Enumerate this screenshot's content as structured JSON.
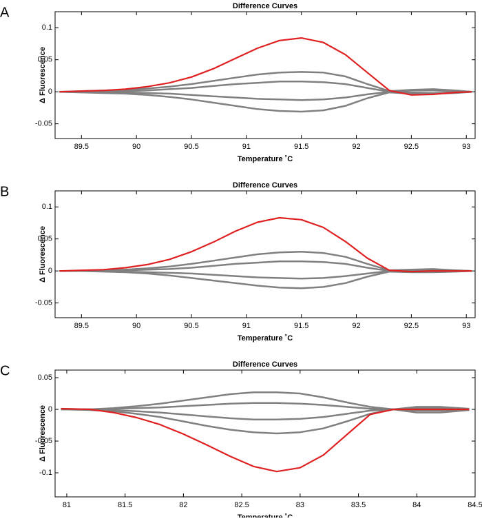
{
  "chart_data": [
    {
      "type": "line",
      "panel_label": "A",
      "title": "Difference Curves",
      "x_label": "Temperature ˚C",
      "y_label": "Δ Fluorescence",
      "x": [
        89.3,
        89.5,
        89.7,
        89.9,
        90.1,
        90.3,
        90.5,
        90.7,
        90.9,
        91.1,
        91.3,
        91.5,
        91.7,
        91.9,
        92.1,
        92.3,
        92.5,
        92.7,
        92.9,
        93.05
      ],
      "series": [
        {
          "color": "#808080",
          "values": [
            0,
            0.001,
            0.002,
            0.003,
            0.005,
            0.008,
            0.012,
            0.017,
            0.022,
            0.027,
            0.03,
            0.031,
            0.03,
            0.024,
            0.012,
            0.001,
            0.003,
            0.004,
            0.002,
            0
          ]
        },
        {
          "color": "#808080",
          "values": [
            0,
            0,
            0.001,
            0.001,
            0.002,
            0.004,
            0.006,
            0.009,
            0.012,
            0.014,
            0.016,
            0.016,
            0.015,
            0.012,
            0.006,
            0,
            0.002,
            0.002,
            0.001,
            0
          ]
        },
        {
          "color": "#808080",
          "values": [
            0,
            0,
            -0.001,
            -0.001,
            -0.002,
            -0.003,
            -0.005,
            -0.007,
            -0.009,
            -0.011,
            -0.012,
            -0.013,
            -0.012,
            -0.009,
            -0.004,
            0,
            -0.001,
            -0.002,
            -0.001,
            0
          ]
        },
        {
          "color": "#808080",
          "values": [
            0,
            -0.001,
            -0.002,
            -0.003,
            -0.005,
            -0.008,
            -0.012,
            -0.017,
            -0.022,
            -0.027,
            -0.03,
            -0.031,
            -0.029,
            -0.022,
            -0.01,
            -0.001,
            -0.003,
            -0.003,
            -0.002,
            0
          ]
        },
        {
          "color": "#e02020",
          "values": [
            0,
            0.001,
            0.002,
            0.004,
            0.008,
            0.014,
            0.023,
            0.036,
            0.052,
            0.068,
            0.08,
            0.084,
            0.077,
            0.058,
            0.03,
            0.002,
            -0.005,
            -0.004,
            -0.001,
            0
          ]
        }
      ],
      "xlim": [
        89.26,
        93.08
      ],
      "ylim": [
        -0.073,
        0.125
      ],
      "xticks": [
        89.5,
        90,
        90.5,
        91,
        91.5,
        92,
        92.5,
        93
      ],
      "yticks": [
        -0.05,
        0,
        0.05,
        0.1
      ]
    },
    {
      "type": "line",
      "panel_label": "B",
      "title": "Difference Curves",
      "x_label": "Temperature ˚C",
      "y_label": "Δ Fluorescence",
      "x": [
        89.3,
        89.5,
        89.7,
        89.9,
        90.1,
        90.3,
        90.5,
        90.7,
        90.9,
        91.1,
        91.3,
        91.5,
        91.7,
        91.9,
        92.1,
        92.3,
        92.5,
        92.7,
        92.9,
        93.05
      ],
      "series": [
        {
          "color": "#808080",
          "values": [
            0,
            0,
            0.001,
            0.002,
            0.004,
            0.007,
            0.011,
            0.016,
            0.021,
            0.026,
            0.029,
            0.03,
            0.028,
            0.022,
            0.011,
            0.001,
            0.002,
            0.003,
            0.001,
            0
          ]
        },
        {
          "color": "#808080",
          "values": [
            0,
            0,
            0.001,
            0.001,
            0.002,
            0.003,
            0.005,
            0.008,
            0.011,
            0.013,
            0.015,
            0.015,
            0.014,
            0.011,
            0.005,
            0,
            0.001,
            0.002,
            0.001,
            0
          ]
        },
        {
          "color": "#808080",
          "values": [
            0,
            0,
            0,
            -0.001,
            -0.002,
            -0.003,
            -0.004,
            -0.006,
            -0.008,
            -0.01,
            -0.011,
            -0.012,
            -0.011,
            -0.008,
            -0.004,
            0,
            -0.001,
            -0.001,
            0,
            0
          ]
        },
        {
          "color": "#808080",
          "values": [
            0,
            0,
            -0.001,
            -0.002,
            -0.004,
            -0.007,
            -0.011,
            -0.015,
            -0.019,
            -0.023,
            -0.026,
            -0.027,
            -0.025,
            -0.019,
            -0.009,
            -0.001,
            -0.002,
            -0.002,
            -0.001,
            0
          ]
        },
        {
          "color": "#e02020",
          "values": [
            0,
            0.001,
            0.002,
            0.005,
            0.01,
            0.018,
            0.03,
            0.045,
            0.062,
            0.076,
            0.083,
            0.08,
            0.068,
            0.046,
            0.02,
            0.001,
            -0.001,
            0,
            0,
            0
          ]
        }
      ],
      "xlim": [
        89.26,
        93.08
      ],
      "ylim": [
        -0.073,
        0.125
      ],
      "xticks": [
        89.5,
        90,
        90.5,
        91,
        91.5,
        92,
        92.5,
        93
      ],
      "yticks": [
        -0.05,
        0,
        0.05,
        0.1
      ]
    },
    {
      "type": "line",
      "panel_label": "C",
      "title": "Difference Curves",
      "x_label": "Temperature ˚C",
      "y_label": "Δ Fluorescence",
      "x": [
        80.95,
        81.2,
        81.4,
        81.6,
        81.8,
        82.0,
        82.2,
        82.4,
        82.6,
        82.8,
        83.0,
        83.2,
        83.4,
        83.6,
        83.8,
        84.0,
        84.2,
        84.45
      ],
      "series": [
        {
          "color": "#808080",
          "values": [
            0.001,
            0,
            0.002,
            0.005,
            0.009,
            0.014,
            0.019,
            0.024,
            0.027,
            0.027,
            0.025,
            0.019,
            0.011,
            0.004,
            0,
            0.004,
            0.004,
            0.001
          ]
        },
        {
          "color": "#808080",
          "values": [
            0,
            0,
            0.001,
            0.002,
            0.003,
            0.005,
            0.007,
            0.009,
            0.01,
            0.01,
            0.009,
            0.007,
            0.004,
            0.001,
            0,
            0.002,
            0.002,
            0
          ]
        },
        {
          "color": "#808080",
          "values": [
            0,
            0,
            -0.001,
            -0.003,
            -0.005,
            -0.008,
            -0.011,
            -0.014,
            -0.016,
            -0.016,
            -0.015,
            -0.012,
            -0.007,
            -0.002,
            0,
            -0.002,
            -0.002,
            0
          ]
        },
        {
          "color": "#808080",
          "values": [
            0,
            -0.001,
            -0.003,
            -0.007,
            -0.012,
            -0.019,
            -0.026,
            -0.032,
            -0.036,
            -0.038,
            -0.036,
            -0.03,
            -0.019,
            -0.007,
            0,
            -0.005,
            -0.005,
            -0.001
          ]
        },
        {
          "color": "#e02020",
          "values": [
            0.001,
            0,
            -0.005,
            -0.013,
            -0.024,
            -0.039,
            -0.056,
            -0.074,
            -0.09,
            -0.098,
            -0.092,
            -0.072,
            -0.04,
            -0.008,
            0,
            0,
            0,
            0
          ]
        }
      ],
      "xlim": [
        80.9,
        84.5
      ],
      "ylim": [
        -0.138,
        0.062
      ],
      "xticks": [
        81,
        81.5,
        82,
        82.5,
        83,
        83.5,
        84,
        84.5
      ],
      "yticks": [
        -0.1,
        -0.05,
        0,
        0.05
      ]
    }
  ]
}
